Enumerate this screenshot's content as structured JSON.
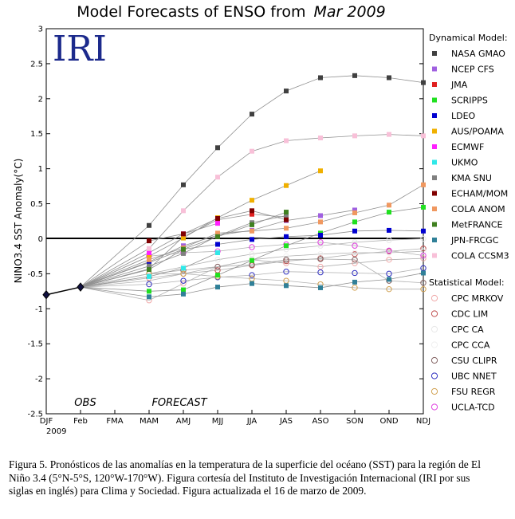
{
  "chart_data": {
    "type": "line",
    "title": "Model Forecasts of ENSO from",
    "title_italic": "Mar 2009",
    "logo_text": "IRI",
    "ylabel": "NINO3.4 SST Anomaly(°C)",
    "year_label": "2009",
    "categories": [
      "DJF",
      "Feb",
      "FMA",
      "MAM",
      "AMJ",
      "MJJ",
      "JJA",
      "JAS",
      "ASO",
      "SON",
      "OND",
      "NDJ"
    ],
    "yticks": [
      "-2.5",
      "-2",
      "-1.5",
      "-1",
      "-0.5",
      "0",
      "0.5",
      "1",
      "1.5",
      "2",
      "2.5",
      "3"
    ],
    "ylim": [
      -2.5,
      3
    ],
    "region_labels": {
      "obs": "OBS",
      "forecast": "FORECAST"
    },
    "observed": [
      {
        "x": 0,
        "y": -0.8
      },
      {
        "x": 1,
        "y": -0.69
      }
    ],
    "legend_dynamical_header": "Dynamical Model:",
    "legend_statistical_header": "Statistical Model:",
    "dynamical": [
      {
        "name": "NASA GMAO",
        "color": "#404040",
        "values": [
          0.19,
          0.77,
          1.3,
          1.78,
          2.11,
          2.3,
          2.33,
          2.3,
          2.23
        ]
      },
      {
        "name": "NCEP CFS",
        "color": "#a060e0",
        "values": [
          -0.33,
          -0.1,
          0.05,
          0.12,
          0.26,
          0.33,
          0.41,
          null,
          null
        ]
      },
      {
        "name": "JMA",
        "color": "#e02020",
        "values": [
          -0.43,
          0.03,
          0.27,
          0.35,
          0.31,
          null,
          null,
          null,
          null
        ]
      },
      {
        "name": "SCRIPPS",
        "color": "#20e020",
        "values": [
          -0.75,
          -0.73,
          -0.52,
          -0.31,
          -0.1,
          0.08,
          0.24,
          0.38,
          0.45
        ]
      },
      {
        "name": "LDEO",
        "color": "#0000d0",
        "values": [
          -0.34,
          -0.15,
          -0.08,
          -0.01,
          0.03,
          0.05,
          0.11,
          0.12,
          0.11
        ]
      },
      {
        "name": "AUS/POAMA",
        "color": "#f0b000",
        "values": [
          -0.25,
          0.01,
          0.3,
          0.55,
          0.76,
          0.97,
          null,
          null,
          null
        ]
      },
      {
        "name": "ECMWF",
        "color": "#ff20ff",
        "values": [
          -0.2,
          0.07,
          0.22,
          null,
          null,
          null,
          null,
          null,
          null
        ]
      },
      {
        "name": "UKMO",
        "color": "#30e8e8",
        "values": [
          -0.54,
          -0.42,
          -0.2,
          null,
          null,
          null,
          null,
          null,
          null
        ]
      },
      {
        "name": "KMA SNU",
        "color": "#808080",
        "values": [
          -0.39,
          -0.21,
          0.04,
          0.23,
          0.33,
          null,
          null,
          null,
          null
        ]
      },
      {
        "name": "ECHAM/MOM",
        "color": "#800000",
        "values": [
          -0.03,
          0.07,
          0.29,
          0.4,
          0.27,
          null,
          null,
          null,
          null
        ]
      },
      {
        "name": "COLA ANOM",
        "color": "#f09860",
        "values": [
          -0.3,
          -0.13,
          0.08,
          0.11,
          0.15,
          0.24,
          0.37,
          0.48,
          0.77
        ]
      },
      {
        "name": "MetFRANCE",
        "color": "#408020",
        "values": [
          -0.44,
          -0.15,
          0.03,
          0.2,
          0.38,
          null,
          null,
          null,
          null
        ]
      },
      {
        "name": "JPN-FRCGC",
        "color": "#308098",
        "values": [
          -0.83,
          -0.79,
          -0.69,
          -0.64,
          -0.67,
          -0.7,
          -0.62,
          -0.58,
          -0.49
        ]
      },
      {
        "name": "COLA CCSM3",
        "color": "#f8c0d8",
        "values": [
          -0.14,
          0.4,
          0.88,
          1.25,
          1.4,
          1.44,
          1.47,
          1.49,
          1.47
        ]
      }
    ],
    "statistical": [
      {
        "name": "CPC MRKOV",
        "color": "#f0a8a8",
        "values": [
          -0.88,
          -0.64,
          -0.4,
          -0.3,
          -0.35,
          -0.4,
          -0.35,
          -0.3,
          -0.28
        ]
      },
      {
        "name": "CDC LIM",
        "color": "#c05050",
        "values": [
          -0.56,
          -0.5,
          -0.45,
          -0.38,
          -0.32,
          -0.28,
          -0.22,
          -0.18,
          -0.14
        ]
      },
      {
        "name": "CPC CA",
        "color": "#e8e8e8",
        "values": [
          -0.5,
          -0.4,
          -0.3,
          -0.22,
          -0.15,
          -0.1,
          -0.05,
          -0.02,
          0.0
        ]
      },
      {
        "name": "CPC CCA",
        "color": "#f0f0f0",
        "values": [
          -0.6,
          -0.5,
          -0.4,
          -0.3,
          -0.25,
          -0.22,
          -0.2,
          -0.2,
          -0.18
        ]
      },
      {
        "name": "CSU CLIPR",
        "color": "#806060",
        "values": [
          -0.5,
          -0.45,
          -0.4,
          -0.37,
          -0.3,
          -0.29,
          -0.3,
          -0.6,
          -0.63
        ]
      },
      {
        "name": "UBC NNET",
        "color": "#3030c0",
        "values": [
          -0.65,
          -0.6,
          -0.55,
          -0.52,
          -0.47,
          -0.48,
          -0.49,
          -0.5,
          -0.42
        ]
      },
      {
        "name": "FSU REGR",
        "color": "#d0a050",
        "values": [
          -0.5,
          -0.5,
          -0.54,
          -0.57,
          -0.6,
          -0.65,
          -0.7,
          -0.72,
          -0.72
        ]
      },
      {
        "name": "UCLA-TCD",
        "color": "#e040e0",
        "values": [
          -0.25,
          -0.2,
          -0.18,
          -0.12,
          -0.08,
          -0.05,
          -0.1,
          -0.17,
          -0.24
        ]
      }
    ]
  },
  "caption": "Figura 5. Pronósticos de las anomalías en la temperatura de la superficie del océano (SST) para la región de El Niño 3.4 (5°N-5°S, 120°W-170°W). Figura cortesía del Instituto de Investigación Internacional (IRI por sus siglas en inglés) para Clima y Sociedad. Figura actualizada el 16 de marzo de 2009."
}
